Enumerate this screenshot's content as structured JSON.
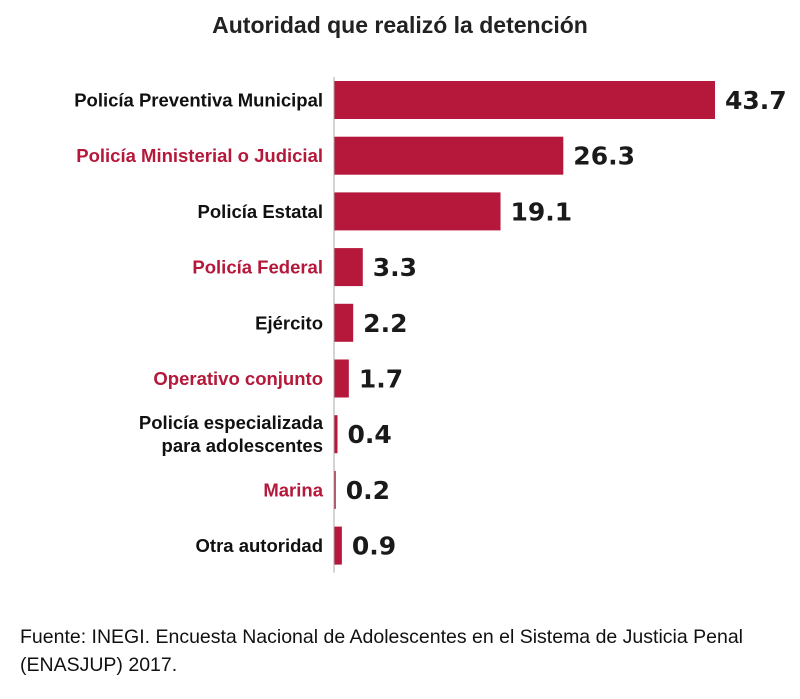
{
  "chart_data": {
    "type": "bar",
    "orientation": "horizontal",
    "title": "Autoridad que realizó la detención",
    "categories": [
      "Policía Preventiva Municipal",
      "Policía Ministerial o Judicial",
      "Policía Estatal",
      "Policía Federal",
      "Ejército",
      "Operativo conjunto",
      "Policía especializada para adolescentes",
      "Marina",
      "Otra autoridad"
    ],
    "category_lines": [
      [
        "Policía Preventiva Municipal"
      ],
      [
        "Policía Ministerial o Judicial"
      ],
      [
        "Policía Estatal"
      ],
      [
        "Policía Federal"
      ],
      [
        "Ejército"
      ],
      [
        "Operativo conjunto"
      ],
      [
        "Policía especializada",
        "para adolescentes"
      ],
      [
        "Marina"
      ],
      [
        "Otra autoridad"
      ]
    ],
    "values": [
      43.7,
      26.3,
      19.1,
      3.3,
      2.2,
      1.7,
      0.4,
      0.2,
      0.9
    ],
    "value_labels": [
      "43.7",
      "26.3",
      "19.1",
      "3.3",
      "2.2",
      "1.7",
      "0.4",
      "0.2",
      "0.9"
    ],
    "label_colors": [
      "#111111",
      "#b5183a",
      "#111111",
      "#b5183a",
      "#111111",
      "#b5183a",
      "#111111",
      "#b5183a",
      "#111111"
    ],
    "xlim": [
      0,
      43.7
    ],
    "grid": false,
    "legend": "none",
    "bar_color": "#b5183a",
    "axis_color": "#aaaaaa"
  },
  "source_note": "Fuente: INEGI. Encuesta Nacional de Adolescentes en el Sistema de Justicia Penal (ENASJUP) 2017."
}
